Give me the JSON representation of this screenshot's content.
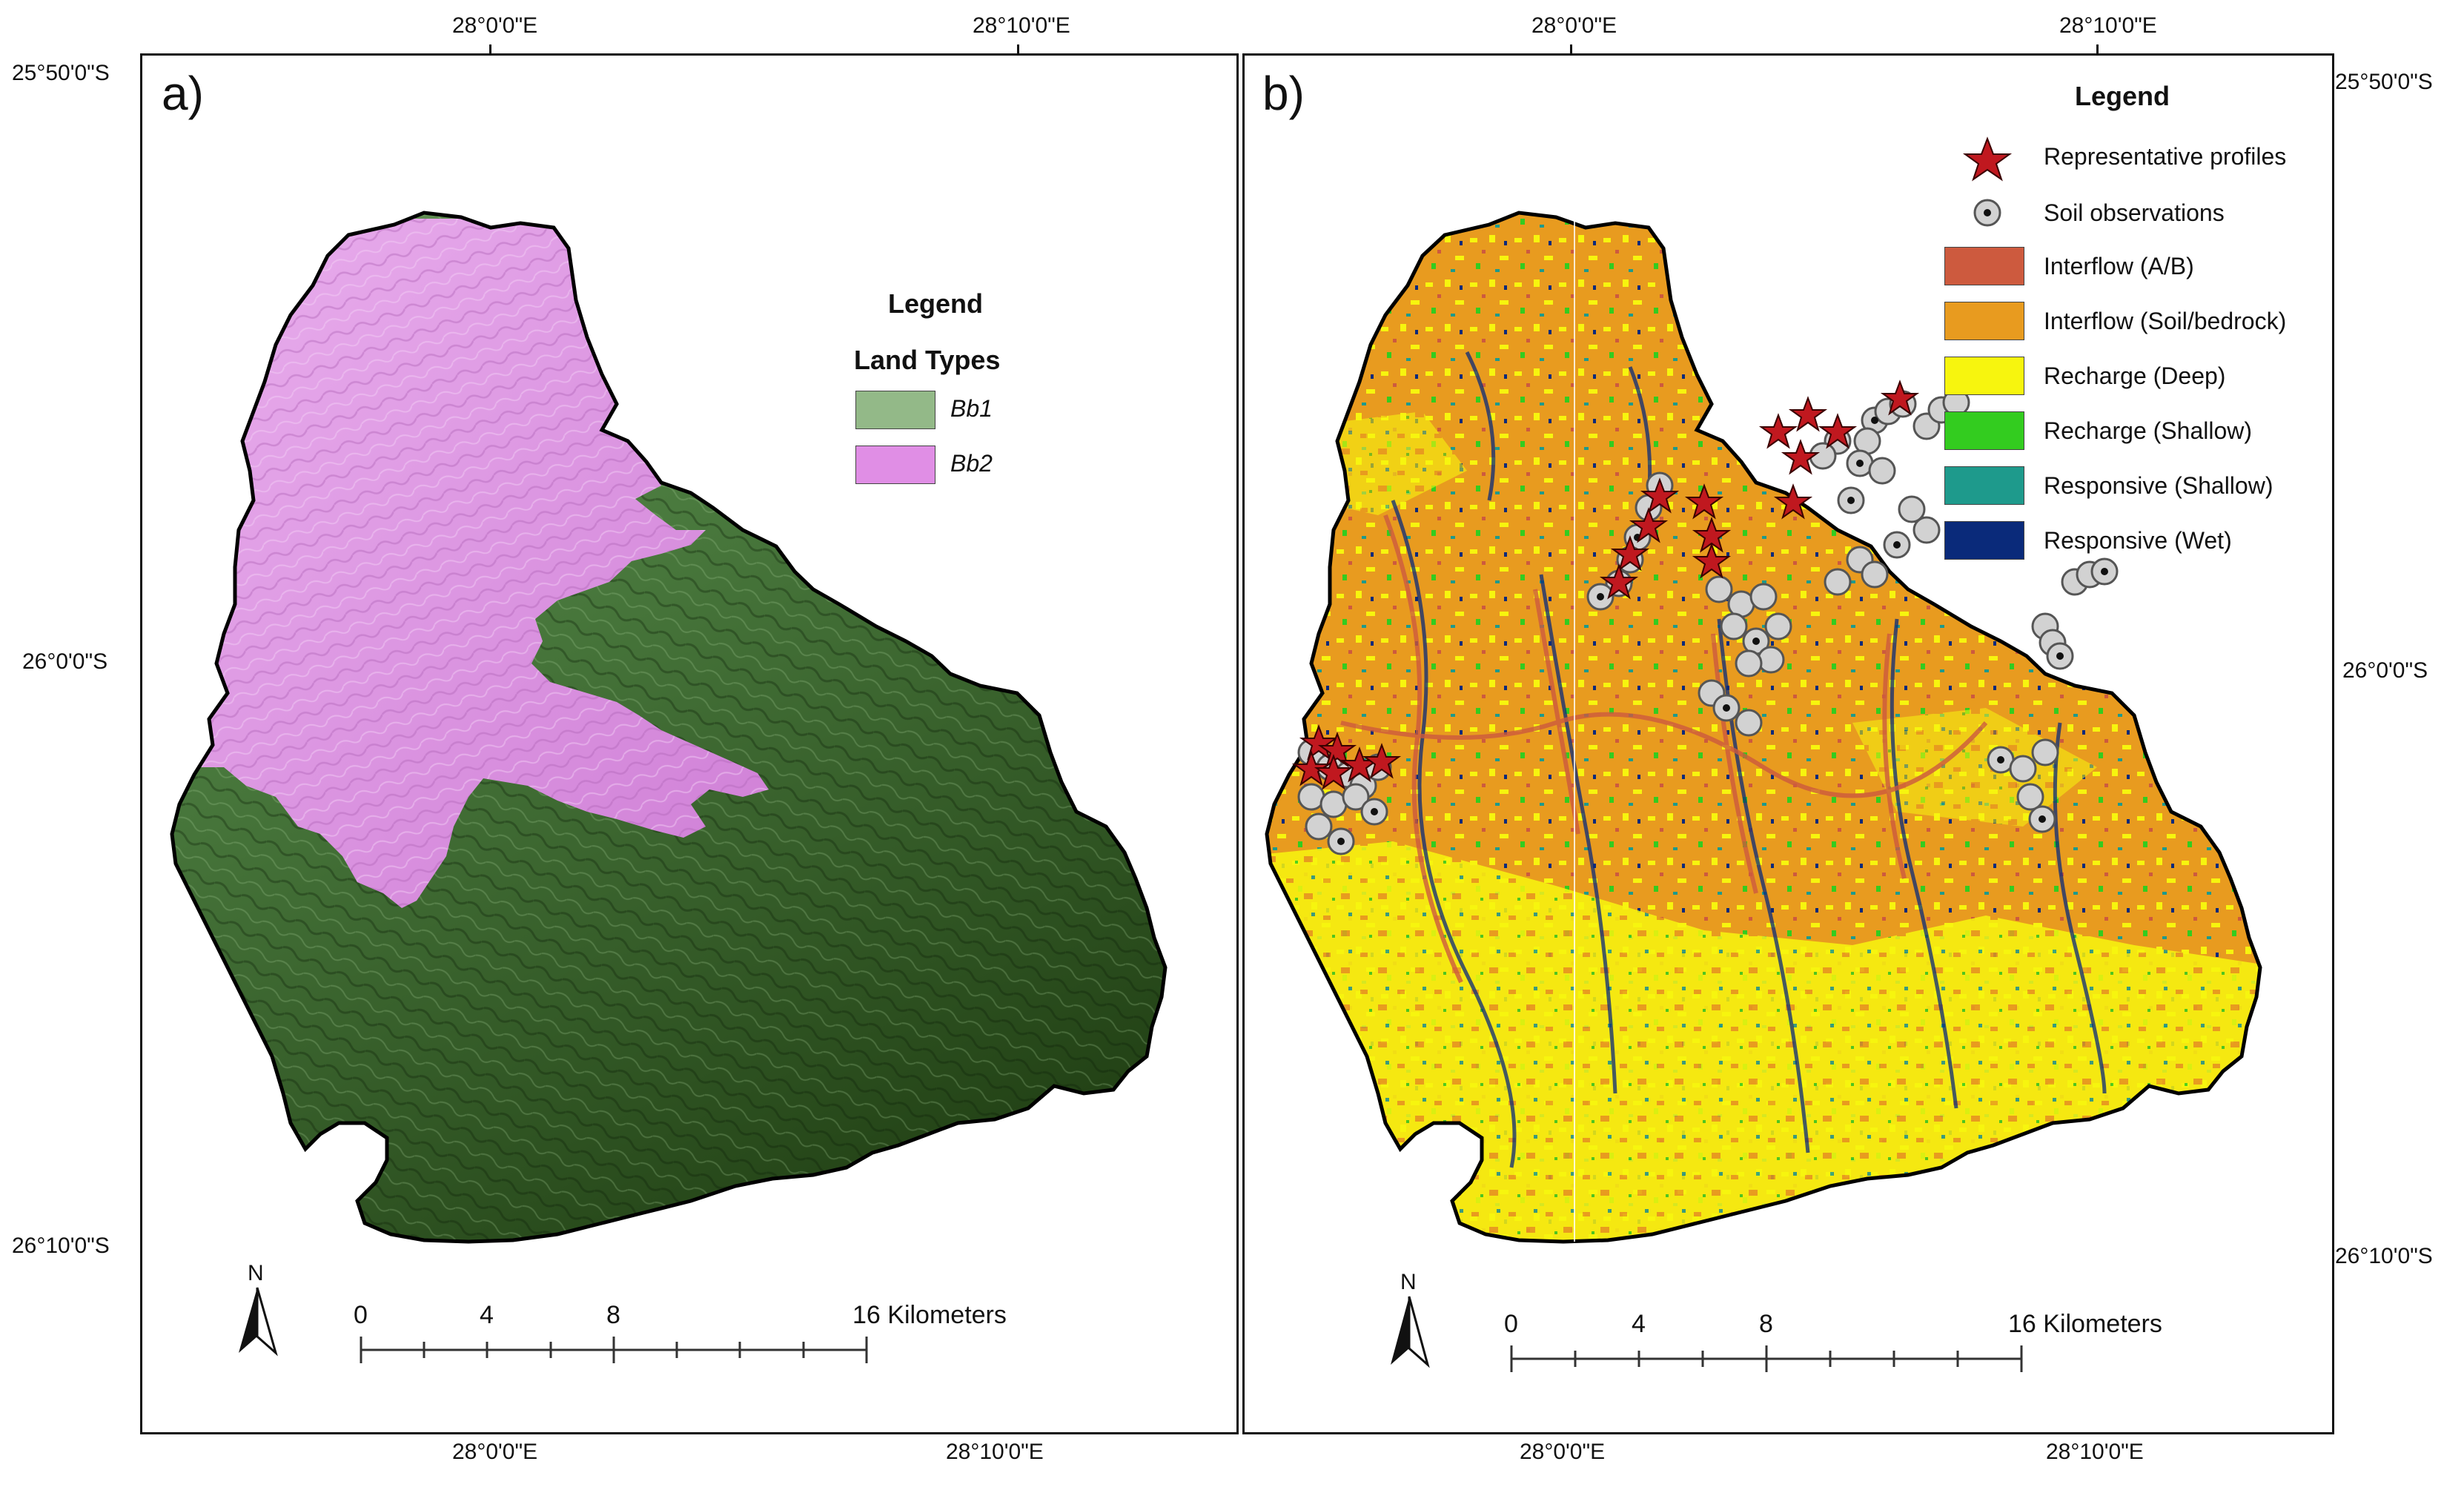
{
  "panel_a": {
    "label": "a)",
    "legend": {
      "title": "Legend",
      "subtitle": "Land Types",
      "items": [
        {
          "label": "Bb1",
          "color": "#93b988"
        },
        {
          "label": "Bb2",
          "color": "#e08ee5"
        }
      ]
    },
    "top_lon_labels": [
      "28°0'0\"E",
      "28°10'0\"E"
    ],
    "bottom_lon_labels": [
      "28°0'0\"E",
      "28°10'0\"E"
    ],
    "left_lat_labels": [
      "25°50'0\"S",
      "26°0'0\"S",
      "26°10'0\"S"
    ],
    "north_label": "N",
    "scale": {
      "labels": [
        "0",
        "4",
        "8",
        "16 Kilometers"
      ]
    },
    "colors": {
      "bb1_dark": "#1f3d12",
      "bb1_light": "#6f9a60",
      "bb2": "#d989e0"
    }
  },
  "panel_b": {
    "label": "b)",
    "legend": {
      "title": "Legend",
      "items": [
        {
          "label": "Representative profiles",
          "symbol": "red-star-icon",
          "color": "#c0181f"
        },
        {
          "label": "Soil observations",
          "symbol": "dot-circle-icon",
          "color": "#c8c8c8"
        },
        {
          "label": "Interflow (A/B)",
          "color": "#cd5a3e"
        },
        {
          "label": "Interflow (Soil/bedrock)",
          "color": "#e89b1f"
        },
        {
          "label": "Recharge (Deep)",
          "color": "#f7f50e"
        },
        {
          "label": "Recharge (Shallow)",
          "color": "#33cc1f"
        },
        {
          "label": "Responsive (Shallow)",
          "color": "#1e9a8c"
        },
        {
          "label": "Responsive (Wet)",
          "color": "#0a2a7a"
        }
      ]
    },
    "top_lon_labels": [
      "28°0'0\"E",
      "28°10'0\"E"
    ],
    "bottom_lon_labels": [
      "28°0'0\"E",
      "28°10'0\"E"
    ],
    "right_lat_labels": [
      "25°50'0\"S",
      "26°0'0\"S",
      "26°10'0\"S"
    ],
    "north_label": "N",
    "scale": {
      "labels": [
        "0",
        "4",
        "8",
        "16 Kilometers"
      ]
    }
  }
}
